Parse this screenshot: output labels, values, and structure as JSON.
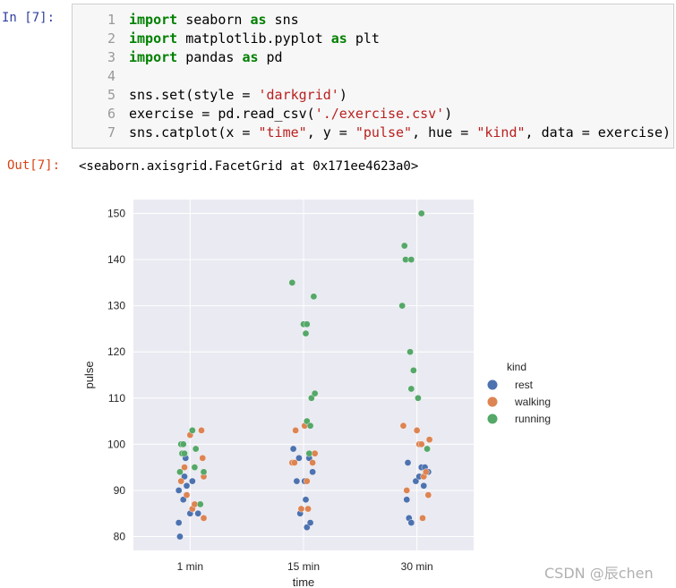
{
  "cell": {
    "in_prompt": "In  [7]:",
    "out_prompt": "Out[7]:",
    "output_text": "<seaborn.axisgrid.FacetGrid at 0x171ee4623a0>",
    "code_lines": [
      {
        "num": "1",
        "parts": [
          {
            "t": "import",
            "c": "kw"
          },
          {
            "t": " seaborn ",
            "c": ""
          },
          {
            "t": "as",
            "c": "kw"
          },
          {
            "t": " sns",
            "c": ""
          }
        ]
      },
      {
        "num": "2",
        "parts": [
          {
            "t": "import",
            "c": "kw"
          },
          {
            "t": " matplotlib.pyplot ",
            "c": ""
          },
          {
            "t": "as",
            "c": "kw"
          },
          {
            "t": " plt",
            "c": ""
          }
        ]
      },
      {
        "num": "3",
        "parts": [
          {
            "t": "import",
            "c": "kw"
          },
          {
            "t": " pandas ",
            "c": ""
          },
          {
            "t": "as",
            "c": "kw"
          },
          {
            "t": " pd",
            "c": ""
          }
        ]
      },
      {
        "num": "4",
        "parts": []
      },
      {
        "num": "5",
        "parts": [
          {
            "t": "sns.set(style = ",
            "c": ""
          },
          {
            "t": "'darkgrid'",
            "c": "str"
          },
          {
            "t": ")",
            "c": ""
          }
        ]
      },
      {
        "num": "6",
        "parts": [
          {
            "t": "exercise = pd.read_csv(",
            "c": ""
          },
          {
            "t": "'./exercise.csv'",
            "c": "str"
          },
          {
            "t": ")",
            "c": ""
          }
        ]
      },
      {
        "num": "7",
        "parts": [
          {
            "t": "sns.catplot(x = ",
            "c": ""
          },
          {
            "t": "\"time\"",
            "c": "str"
          },
          {
            "t": ", y = ",
            "c": ""
          },
          {
            "t": "\"pulse\"",
            "c": "str"
          },
          {
            "t": ", hue = ",
            "c": ""
          },
          {
            "t": "\"kind\"",
            "c": "str"
          },
          {
            "t": ", data = exercise)",
            "c": ""
          }
        ]
      }
    ]
  },
  "watermark": "CSDN @辰chen",
  "colors": {
    "rest": "#4c72b0",
    "walking": "#dd8452",
    "running": "#55a868",
    "plot_bg": "#eaeaf2",
    "grid": "#ffffff"
  },
  "chart_data": {
    "type": "scatter",
    "title": "",
    "xlabel": "time",
    "ylabel": "pulse",
    "categories": [
      "1 min",
      "15 min",
      "30 min"
    ],
    "ylim": [
      77,
      153
    ],
    "yticks": [
      80,
      90,
      100,
      110,
      120,
      130,
      140,
      150
    ],
    "grid": true,
    "legend_title": "kind",
    "legend_position": "right",
    "series": [
      {
        "name": "rest",
        "points": [
          {
            "x": "1 min",
            "y": 85,
            "j": 0.07
          },
          {
            "x": "1 min",
            "y": 85,
            "j": 0.0
          },
          {
            "x": "1 min",
            "y": 88,
            "j": -0.06
          },
          {
            "x": "1 min",
            "y": 90,
            "j": -0.1
          },
          {
            "x": "1 min",
            "y": 92,
            "j": 0.02
          },
          {
            "x": "1 min",
            "y": 93,
            "j": -0.05
          },
          {
            "x": "1 min",
            "y": 97,
            "j": -0.04
          },
          {
            "x": "1 min",
            "y": 80,
            "j": -0.09
          },
          {
            "x": "1 min",
            "y": 83,
            "j": -0.1
          },
          {
            "x": "1 min",
            "y": 91,
            "j": -0.03
          },
          {
            "x": "15 min",
            "y": 92,
            "j": -0.06
          },
          {
            "x": "15 min",
            "y": 97,
            "j": -0.04
          },
          {
            "x": "15 min",
            "y": 99,
            "j": -0.09
          },
          {
            "x": "15 min",
            "y": 85,
            "j": -0.03
          },
          {
            "x": "15 min",
            "y": 88,
            "j": 0.02
          },
          {
            "x": "15 min",
            "y": 92,
            "j": 0.01
          },
          {
            "x": "15 min",
            "y": 94,
            "j": 0.08
          },
          {
            "x": "15 min",
            "y": 82,
            "j": 0.03
          },
          {
            "x": "15 min",
            "y": 83,
            "j": 0.06
          },
          {
            "x": "15 min",
            "y": 97,
            "j": 0.05
          },
          {
            "x": "30 min",
            "y": 96,
            "j": -0.08
          },
          {
            "x": "30 min",
            "y": 95,
            "j": 0.04
          },
          {
            "x": "30 min",
            "y": 92,
            "j": -0.01
          },
          {
            "x": "30 min",
            "y": 88,
            "j": -0.09
          },
          {
            "x": "30 min",
            "y": 84,
            "j": -0.07
          },
          {
            "x": "30 min",
            "y": 83,
            "j": -0.05
          },
          {
            "x": "30 min",
            "y": 91,
            "j": 0.06
          },
          {
            "x": "30 min",
            "y": 94,
            "j": 0.1
          },
          {
            "x": "30 min",
            "y": 93,
            "j": 0.02
          },
          {
            "x": "30 min",
            "y": 95,
            "j": 0.07
          }
        ]
      },
      {
        "name": "walking",
        "points": [
          {
            "x": "1 min",
            "y": 103,
            "j": 0.1
          },
          {
            "x": "1 min",
            "y": 97,
            "j": 0.11
          },
          {
            "x": "1 min",
            "y": 93,
            "j": 0.12
          },
          {
            "x": "1 min",
            "y": 95,
            "j": -0.05
          },
          {
            "x": "1 min",
            "y": 92,
            "j": -0.08
          },
          {
            "x": "1 min",
            "y": 89,
            "j": -0.03
          },
          {
            "x": "1 min",
            "y": 86,
            "j": 0.02
          },
          {
            "x": "1 min",
            "y": 84,
            "j": 0.12
          },
          {
            "x": "1 min",
            "y": 102,
            "j": 0.0
          },
          {
            "x": "1 min",
            "y": 87,
            "j": 0.04
          },
          {
            "x": "15 min",
            "y": 96,
            "j": -0.1
          },
          {
            "x": "15 min",
            "y": 98,
            "j": 0.1
          },
          {
            "x": "15 min",
            "y": 96,
            "j": -0.08
          },
          {
            "x": "15 min",
            "y": 103,
            "j": -0.07
          },
          {
            "x": "15 min",
            "y": 104,
            "j": 0.01
          },
          {
            "x": "15 min",
            "y": 96,
            "j": 0.08
          },
          {
            "x": "15 min",
            "y": 92,
            "j": 0.03
          },
          {
            "x": "15 min",
            "y": 86,
            "j": -0.02
          },
          {
            "x": "15 min",
            "y": 86,
            "j": 0.04
          },
          {
            "x": "15 min",
            "y": 105,
            "j": 0.03
          },
          {
            "x": "30 min",
            "y": 104,
            "j": -0.12
          },
          {
            "x": "30 min",
            "y": 103,
            "j": 0.0
          },
          {
            "x": "30 min",
            "y": 100,
            "j": 0.02
          },
          {
            "x": "30 min",
            "y": 101,
            "j": 0.11
          },
          {
            "x": "30 min",
            "y": 100,
            "j": 0.04
          },
          {
            "x": "30 min",
            "y": 93,
            "j": 0.06
          },
          {
            "x": "30 min",
            "y": 90,
            "j": -0.09
          },
          {
            "x": "30 min",
            "y": 89,
            "j": 0.1
          },
          {
            "x": "30 min",
            "y": 84,
            "j": 0.05
          },
          {
            "x": "30 min",
            "y": 94,
            "j": 0.08
          }
        ]
      },
      {
        "name": "running",
        "points": [
          {
            "x": "1 min",
            "y": 103,
            "j": 0.02
          },
          {
            "x": "1 min",
            "y": 100,
            "j": -0.08
          },
          {
            "x": "1 min",
            "y": 100,
            "j": -0.06
          },
          {
            "x": "1 min",
            "y": 99,
            "j": 0.05
          },
          {
            "x": "1 min",
            "y": 98,
            "j": -0.07
          },
          {
            "x": "1 min",
            "y": 98,
            "j": -0.05
          },
          {
            "x": "1 min",
            "y": 95,
            "j": 0.04
          },
          {
            "x": "1 min",
            "y": 94,
            "j": -0.09
          },
          {
            "x": "1 min",
            "y": 94,
            "j": 0.12
          },
          {
            "x": "1 min",
            "y": 87,
            "j": 0.09
          },
          {
            "x": "15 min",
            "y": 135,
            "j": -0.1
          },
          {
            "x": "15 min",
            "y": 132,
            "j": 0.09
          },
          {
            "x": "15 min",
            "y": 126,
            "j": 0.0
          },
          {
            "x": "15 min",
            "y": 126,
            "j": 0.03
          },
          {
            "x": "15 min",
            "y": 124,
            "j": 0.02
          },
          {
            "x": "15 min",
            "y": 110,
            "j": 0.07
          },
          {
            "x": "15 min",
            "y": 111,
            "j": 0.1
          },
          {
            "x": "15 min",
            "y": 105,
            "j": 0.03
          },
          {
            "x": "15 min",
            "y": 104,
            "j": 0.06
          },
          {
            "x": "15 min",
            "y": 98,
            "j": 0.05
          },
          {
            "x": "30 min",
            "y": 150,
            "j": 0.04
          },
          {
            "x": "30 min",
            "y": 143,
            "j": -0.11
          },
          {
            "x": "30 min",
            "y": 140,
            "j": -0.1
          },
          {
            "x": "30 min",
            "y": 140,
            "j": -0.05
          },
          {
            "x": "30 min",
            "y": 130,
            "j": -0.13
          },
          {
            "x": "30 min",
            "y": 120,
            "j": -0.06
          },
          {
            "x": "30 min",
            "y": 116,
            "j": -0.03
          },
          {
            "x": "30 min",
            "y": 112,
            "j": -0.05
          },
          {
            "x": "30 min",
            "y": 110,
            "j": 0.01
          },
          {
            "x": "30 min",
            "y": 99,
            "j": 0.09
          }
        ]
      }
    ]
  }
}
